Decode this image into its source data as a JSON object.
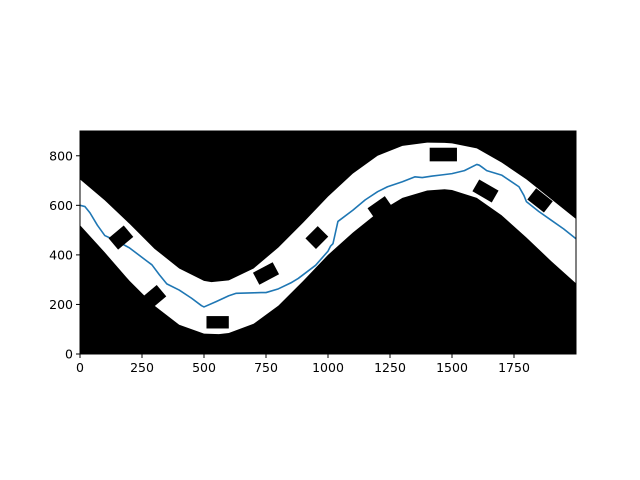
{
  "chart_data": {
    "type": "line",
    "title": "",
    "xlabel": "",
    "ylabel": "",
    "xlim": [
      0,
      2000
    ],
    "ylim": [
      0,
      900
    ],
    "xticks": [
      0,
      250,
      500,
      750,
      1000,
      1250,
      1500,
      1750
    ],
    "yticks": [
      0,
      200,
      400,
      600,
      800
    ],
    "grid": false,
    "legend": "none",
    "colors": {
      "background": "#000000",
      "road": "#ffffff",
      "path": "#1f77b4",
      "obstacle": "#000000"
    },
    "road": {
      "upper_boundary": {
        "x": [
          0,
          100,
          200,
          300,
          400,
          500,
          530,
          600,
          700,
          800,
          900,
          1000,
          1100,
          1200,
          1300,
          1400,
          1470,
          1500,
          1600,
          1700,
          1800,
          1900,
          2000
        ],
        "y": [
          705,
          620,
          525,
          425,
          345,
          295,
          290,
          297,
          345,
          430,
          530,
          635,
          728,
          800,
          840,
          853,
          852,
          850,
          830,
          773,
          705,
          625,
          545
        ]
      },
      "lower_boundary": {
        "x": [
          0,
          100,
          200,
          300,
          400,
          500,
          560,
          600,
          700,
          800,
          900,
          1000,
          1100,
          1200,
          1300,
          1400,
          1470,
          1500,
          1600,
          1700,
          1800,
          1900,
          2000
        ],
        "y": [
          520,
          410,
          295,
          195,
          118,
          82,
          80,
          85,
          122,
          195,
          295,
          400,
          490,
          570,
          630,
          660,
          665,
          662,
          630,
          560,
          470,
          375,
          285
        ]
      }
    },
    "series": [
      {
        "x": [
          0,
          20,
          40,
          70,
          100,
          150,
          200,
          250,
          270,
          290,
          320,
          350,
          400,
          450,
          490,
          500,
          550,
          600,
          630,
          700,
          730,
          750,
          800,
          850,
          880,
          950,
          1000,
          1010,
          1020,
          1040,
          1100,
          1150,
          1200,
          1240,
          1300,
          1350,
          1380,
          1420,
          1460,
          1500,
          1550,
          1600,
          1610,
          1620,
          1640,
          1700,
          1770,
          1790,
          1800,
          1850,
          1900,
          1950,
          2000
        ],
        "y": [
          600,
          595,
          570,
          520,
          478,
          455,
          428,
          390,
          375,
          360,
          320,
          283,
          258,
          225,
          195,
          190,
          212,
          235,
          245,
          247,
          248,
          248,
          263,
          287,
          305,
          358,
          415,
          435,
          445,
          535,
          580,
          622,
          655,
          675,
          695,
          715,
          712,
          718,
          723,
          728,
          740,
          765,
          762,
          755,
          740,
          722,
          675,
          640,
          615,
          575,
          540,
          505,
          465
        ]
      }
    ],
    "obstacles": [
      {
        "cx": 165,
        "cy": 470,
        "w": 80,
        "h": 60,
        "angle": -40
      },
      {
        "cx": 298,
        "cy": 230,
        "w": 80,
        "h": 60,
        "angle": -40
      },
      {
        "cx": 555,
        "cy": 128,
        "w": 90,
        "h": 50,
        "angle": 0
      },
      {
        "cx": 750,
        "cy": 325,
        "w": 90,
        "h": 55,
        "angle": -28
      },
      {
        "cx": 955,
        "cy": 470,
        "w": 70,
        "h": 60,
        "angle": -45
      },
      {
        "cx": 1210,
        "cy": 590,
        "w": 85,
        "h": 55,
        "angle": -35
      },
      {
        "cx": 1465,
        "cy": 805,
        "w": 110,
        "h": 55,
        "angle": 0
      },
      {
        "cx": 1635,
        "cy": 658,
        "w": 90,
        "h": 55,
        "angle": 30
      },
      {
        "cx": 1855,
        "cy": 620,
        "w": 85,
        "h": 58,
        "angle": 38
      }
    ]
  }
}
